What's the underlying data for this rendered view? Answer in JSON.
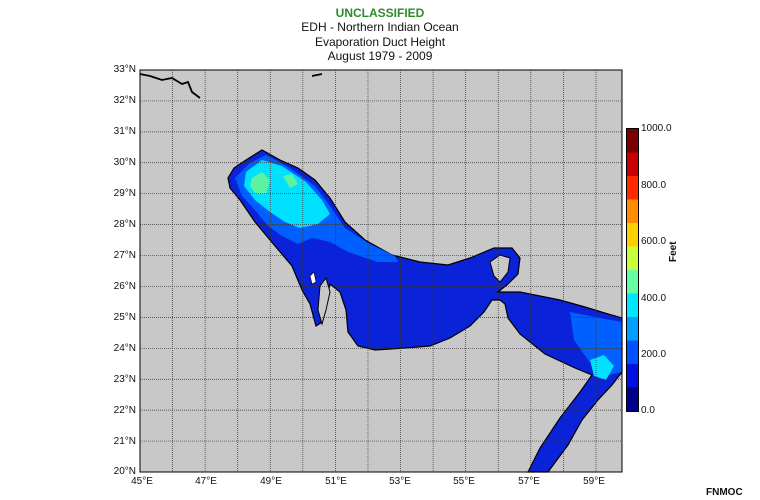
{
  "header": {
    "classification": "UNCLASSIFIED",
    "line1": "EDH - Northern Indian Ocean",
    "line2": "Evaporation Duct Height",
    "line3": "August 1979 - 2009"
  },
  "map": {
    "land_color": "#c8c8c8",
    "lat_labels": [
      "33°N",
      "32°N",
      "31°N",
      "30°N",
      "29°N",
      "28°N",
      "27°N",
      "26°N",
      "25°N",
      "24°N",
      "23°N",
      "22°N",
      "21°N",
      "20°N"
    ],
    "lon_labels": [
      "45°E",
      "47°E",
      "49°E",
      "51°E",
      "53°E",
      "55°E",
      "57°E",
      "59°E"
    ],
    "lat_range": [
      20,
      33
    ],
    "lon_range": [
      45,
      59.8
    ],
    "grid": true
  },
  "colorbar": {
    "unit": "Feet",
    "range": [
      0,
      1000
    ],
    "ticks": [
      "1000.0",
      "800.0",
      "600.0",
      "400.0",
      "200.0",
      "0.0"
    ],
    "colors": [
      "#7a0000",
      "#c80000",
      "#ff2a00",
      "#ff8c00",
      "#ffd000",
      "#c8ff3c",
      "#64ffa0",
      "#00e6ff",
      "#00a0ff",
      "#0050ff",
      "#0010e0",
      "#00008c"
    ]
  },
  "credit": "FNMOC"
}
